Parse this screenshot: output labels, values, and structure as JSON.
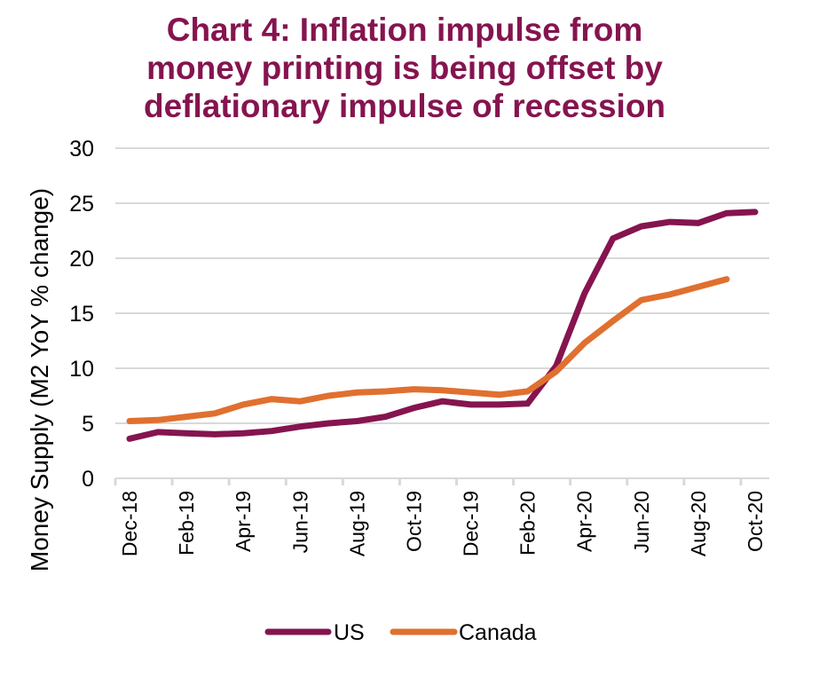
{
  "chart_data": {
    "type": "line",
    "title": "Chart 4: Inflation impulse from money printing is being offset by deflationary impulse of recession",
    "title_lines": [
      "Chart 4: Inflation impulse from",
      "money printing is being offset by",
      "deflationary impulse of recession"
    ],
    "xlabel": "",
    "ylabel": "Money Supply (M2 YoY % change)",
    "ylim": [
      0,
      30
    ],
    "yticks": [
      "0",
      "5",
      "10",
      "15",
      "20",
      "25",
      "30"
    ],
    "ytick_values": [
      0,
      5,
      10,
      15,
      20,
      25,
      30
    ],
    "grid": true,
    "legend_position": "bottom",
    "x": [
      "Dec-18",
      "Jan-19",
      "Feb-19",
      "Mar-19",
      "Apr-19",
      "May-19",
      "Jun-19",
      "Jul-19",
      "Aug-19",
      "Sep-19",
      "Oct-19",
      "Nov-19",
      "Dec-19",
      "Jan-20",
      "Feb-20",
      "Mar-20",
      "Apr-20",
      "May-20",
      "Jun-20",
      "Jul-20",
      "Aug-20",
      "Sep-20",
      "Oct-20"
    ],
    "xtick_labels": [
      "Dec-18",
      "Feb-19",
      "Apr-19",
      "Jun-19",
      "Aug-19",
      "Oct-19",
      "Dec-19",
      "Feb-20",
      "Apr-20",
      "Jun-20",
      "Aug-20",
      "Oct-20"
    ],
    "series": [
      {
        "name": "US",
        "color": "#85144f",
        "values": [
          3.6,
          4.2,
          4.1,
          4.0,
          4.1,
          4.3,
          4.7,
          5.0,
          5.2,
          5.6,
          6.4,
          7.0,
          6.7,
          6.7,
          6.8,
          10.2,
          16.8,
          21.8,
          22.9,
          23.3,
          23.2,
          24.1,
          24.2
        ]
      },
      {
        "name": "Canada",
        "color": "#e0702f",
        "values": [
          5.2,
          5.3,
          5.6,
          5.9,
          6.7,
          7.2,
          7.0,
          7.5,
          7.8,
          7.9,
          8.1,
          8.0,
          7.8,
          7.6,
          7.9,
          9.7,
          12.3,
          14.3,
          16.2,
          16.7,
          17.4,
          18.1,
          null
        ]
      }
    ],
    "colors": {
      "title": "#85144f",
      "grid": "#d9d9d9"
    }
  }
}
